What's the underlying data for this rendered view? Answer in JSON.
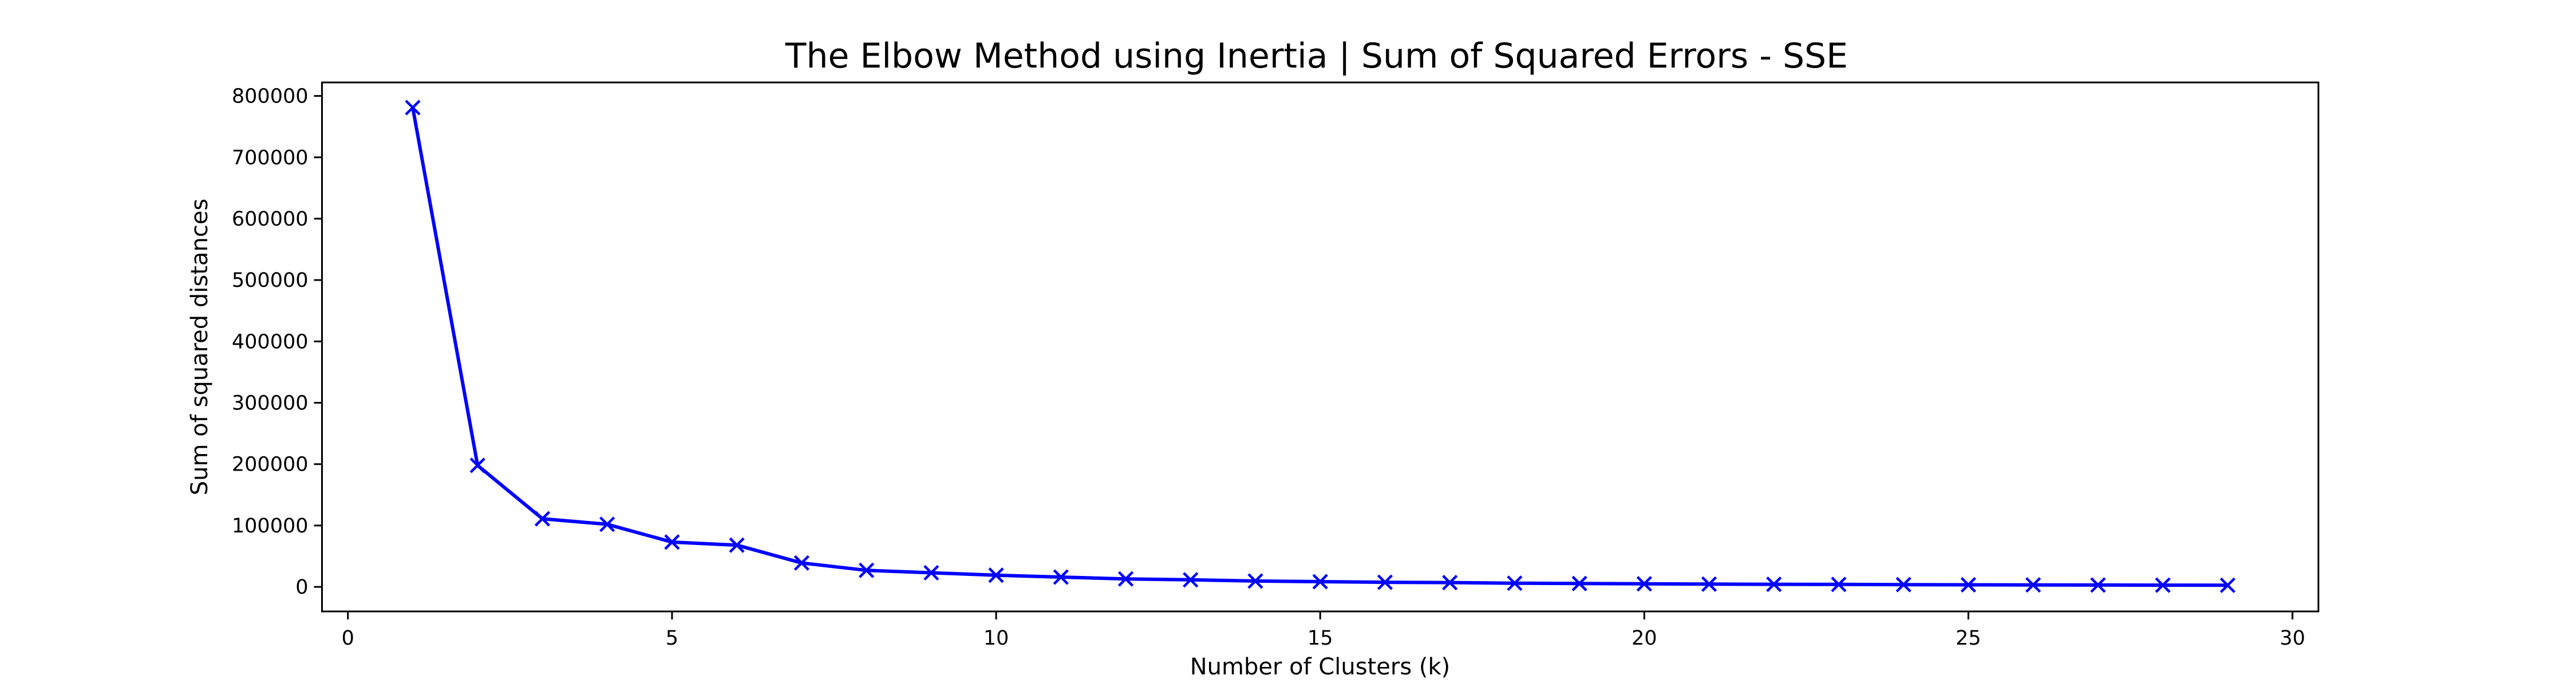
{
  "chart_data": {
    "type": "line",
    "title": "The Elbow Method using Inertia | Sum of Squared Errors - SSE",
    "xlabel": "Number of Clusters (k)",
    "ylabel": "Sum of squared distances",
    "xlim": [
      -0.4,
      30.4
    ],
    "ylim": [
      -40000,
      822000
    ],
    "xticks": [
      0,
      5,
      10,
      15,
      20,
      25,
      30
    ],
    "yticks": [
      0,
      100000,
      200000,
      300000,
      400000,
      500000,
      600000,
      700000,
      800000
    ],
    "grid": false,
    "legend": "none",
    "series": [
      {
        "color": "#0000ff",
        "marker": "x",
        "x": [
          1,
          2,
          3,
          4,
          5,
          6,
          7,
          8,
          9,
          10,
          11,
          12,
          13,
          14,
          15,
          16,
          17,
          18,
          19,
          20,
          21,
          22,
          23,
          24,
          25,
          26,
          27,
          28,
          29
        ],
        "y": [
          781000,
          198000,
          111000,
          102000,
          73000,
          68000,
          39000,
          27000,
          23000,
          19000,
          16000,
          13000,
          11500,
          9500,
          8500,
          7500,
          7000,
          6000,
          5500,
          5000,
          4500,
          4200,
          4000,
          3700,
          3400,
          3200,
          3000,
          2800,
          2600
        ]
      }
    ]
  }
}
